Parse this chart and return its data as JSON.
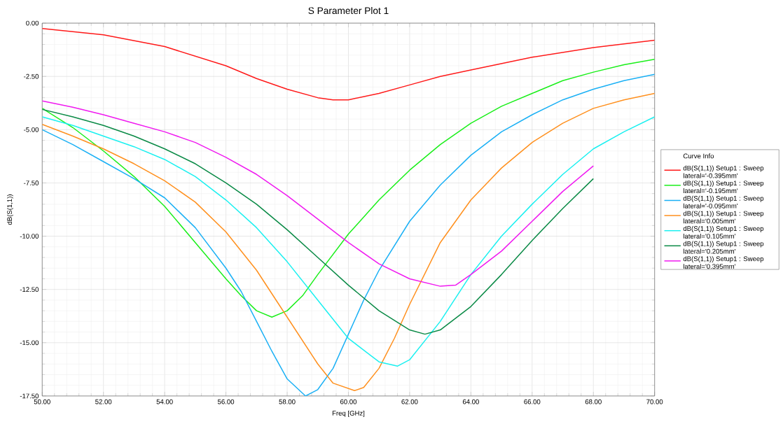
{
  "chart_data": {
    "type": "line",
    "title": "S Parameter Plot 1",
    "xlabel": "Freq [GHz]",
    "ylabel": "dB(S(1,1))",
    "legend_title": "Curve Info",
    "xlim": [
      50,
      70
    ],
    "ylim": [
      -17.5,
      0
    ],
    "xticks": [
      {
        "value": 50,
        "label": "50.00"
      },
      {
        "value": 52,
        "label": "52.00"
      },
      {
        "value": 54,
        "label": "54.00"
      },
      {
        "value": 56,
        "label": "56.00"
      },
      {
        "value": 58,
        "label": "58.00"
      },
      {
        "value": 60,
        "label": "60.00"
      },
      {
        "value": 62,
        "label": "62.00"
      },
      {
        "value": 64,
        "label": "64.00"
      },
      {
        "value": 66,
        "label": "66.00"
      },
      {
        "value": 68,
        "label": "68.00"
      },
      {
        "value": 70,
        "label": "70.00"
      }
    ],
    "yticks": [
      {
        "value": -17.5,
        "label": "-17.50"
      },
      {
        "value": -15,
        "label": "-15.00"
      },
      {
        "value": -12.5,
        "label": "-12.50"
      },
      {
        "value": -10,
        "label": "-10.00"
      },
      {
        "value": -7.5,
        "label": "-7.50"
      },
      {
        "value": -5,
        "label": "-5.00"
      },
      {
        "value": -2.5,
        "label": "-2.50"
      },
      {
        "value": 0,
        "label": "0.00"
      }
    ],
    "grid": true,
    "legend": "right",
    "marker": "none",
    "line_style": "solid",
    "series": [
      {
        "name": "dB(S(1,1)) Setup1 : Sweep lateral='-0.395mm'",
        "color": "#ff1a1a",
        "x": [
          50,
          52,
          54,
          56,
          57,
          58,
          59,
          59.5,
          60,
          61,
          62,
          63,
          64,
          66,
          68,
          70
        ],
        "values": [
          -0.25,
          -0.55,
          -1.1,
          -2.0,
          -2.6,
          -3.1,
          -3.5,
          -3.6,
          -3.6,
          -3.3,
          -2.9,
          -2.5,
          -2.2,
          -1.6,
          -1.15,
          -0.8
        ]
      },
      {
        "name": "dB(S(1,1)) Setup1 : Sweep lateral='-0.195mm'",
        "color": "#1aef1a",
        "x": [
          50,
          51,
          52,
          53,
          54,
          55,
          56,
          56.5,
          57,
          57.5,
          58,
          58.5,
          59,
          60,
          61,
          62,
          63,
          64,
          65,
          66,
          67,
          68,
          69,
          70
        ],
        "values": [
          -4.0,
          -4.9,
          -6.0,
          -7.2,
          -8.6,
          -10.3,
          -12.0,
          -12.8,
          -13.5,
          -13.8,
          -13.5,
          -12.8,
          -11.8,
          -9.9,
          -8.3,
          -6.9,
          -5.7,
          -4.7,
          -3.9,
          -3.3,
          -2.7,
          -2.3,
          -1.95,
          -1.7
        ]
      },
      {
        "name": "dB(S(1,1)) Setup1 : Sweep lateral='-0.095mm'",
        "color": "#1ab0f5",
        "x": [
          50,
          51,
          52,
          53,
          54,
          55,
          56,
          56.5,
          57,
          57.5,
          58,
          58.6,
          59,
          59.5,
          60,
          60.5,
          61,
          62,
          63,
          64,
          65,
          66,
          67,
          68,
          69,
          70
        ],
        "values": [
          -5.0,
          -5.7,
          -6.5,
          -7.3,
          -8.2,
          -9.6,
          -11.5,
          -12.6,
          -14.0,
          -15.4,
          -16.7,
          -17.5,
          -17.2,
          -16.2,
          -14.6,
          -13.0,
          -11.6,
          -9.3,
          -7.6,
          -6.2,
          -5.1,
          -4.3,
          -3.6,
          -3.1,
          -2.7,
          -2.4
        ]
      },
      {
        "name": "dB(S(1,1)) Setup1 : Sweep lateral='0.005mm'",
        "color": "#ff901e",
        "x": [
          50,
          51,
          52,
          53,
          54,
          55,
          56,
          57,
          58,
          59,
          59.5,
          60.2,
          60.5,
          61,
          61.5,
          62,
          63,
          64,
          65,
          66,
          67,
          68,
          69,
          70
        ],
        "values": [
          -4.75,
          -5.3,
          -5.9,
          -6.6,
          -7.4,
          -8.4,
          -9.8,
          -11.6,
          -13.8,
          -16.0,
          -16.9,
          -17.25,
          -17.1,
          -16.2,
          -14.8,
          -13.2,
          -10.3,
          -8.3,
          -6.8,
          -5.6,
          -4.7,
          -4.0,
          -3.6,
          -3.3
        ]
      },
      {
        "name": "dB(S(1,1)) Setup1 : Sweep lateral='0.105mm'",
        "color": "#1af0f0",
        "x": [
          50,
          51,
          52,
          53,
          54,
          55,
          56,
          57,
          58,
          59,
          60,
          61,
          61.6,
          62,
          63,
          64,
          65,
          66,
          67,
          68,
          69,
          70
        ],
        "values": [
          -4.4,
          -4.8,
          -5.3,
          -5.8,
          -6.4,
          -7.2,
          -8.3,
          -9.6,
          -11.2,
          -13.0,
          -14.8,
          -15.9,
          -16.1,
          -15.8,
          -14.0,
          -11.8,
          -10.0,
          -8.5,
          -7.1,
          -5.9,
          -5.1,
          -4.4
        ]
      },
      {
        "name": "dB(S(1,1)) Setup1 : Sweep lateral='0.205mm'",
        "color": "#0a8a46",
        "x": [
          50,
          51,
          52,
          53,
          54,
          55,
          56,
          57,
          58,
          59,
          60,
          61,
          62,
          62.5,
          63,
          64,
          65,
          66,
          67,
          68
        ],
        "values": [
          -4.05,
          -4.4,
          -4.8,
          -5.3,
          -5.9,
          -6.6,
          -7.5,
          -8.5,
          -9.7,
          -11.0,
          -12.3,
          -13.5,
          -14.4,
          -14.6,
          -14.4,
          -13.3,
          -11.8,
          -10.2,
          -8.7,
          -7.3
        ]
      },
      {
        "name": "dB(S(1,1)) Setup1 : Sweep lateral='0.395mm'",
        "color": "#f01af0",
        "x": [
          50,
          51,
          52,
          53,
          54,
          55,
          56,
          57,
          58,
          59,
          60,
          61,
          62,
          63,
          63.5,
          64,
          65,
          66,
          67,
          68
        ],
        "values": [
          -3.65,
          -3.95,
          -4.3,
          -4.7,
          -5.1,
          -5.6,
          -6.3,
          -7.1,
          -8.1,
          -9.2,
          -10.3,
          -11.3,
          -12.0,
          -12.35,
          -12.3,
          -11.8,
          -10.7,
          -9.3,
          -7.9,
          -6.7
        ]
      }
    ]
  }
}
